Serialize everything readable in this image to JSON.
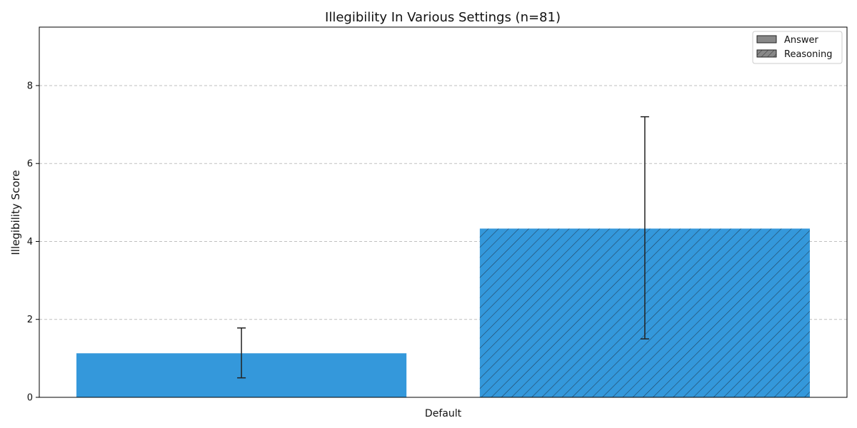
{
  "chart_data": {
    "type": "bar",
    "title": "Illegibility In Various Settings (n=81)",
    "xlabel": "",
    "ylabel": "Illegibility Score",
    "categories": [
      "Default"
    ],
    "ylim": [
      0,
      9.5
    ],
    "yticks": [
      0,
      2,
      4,
      6,
      8
    ],
    "grid": "y-dashed",
    "legend_position": "top-right",
    "series": [
      {
        "name": "Answer",
        "values": [
          1.13
        ],
        "error": [
          [
            0.5,
            1.78
          ]
        ],
        "hatch": false,
        "color": "#3498db"
      },
      {
        "name": "Reasoning",
        "values": [
          4.33
        ],
        "error": [
          [
            1.5,
            7.2
          ]
        ],
        "hatch": true,
        "color": "#3498db"
      }
    ],
    "legend_swatch_color": "#888888"
  }
}
